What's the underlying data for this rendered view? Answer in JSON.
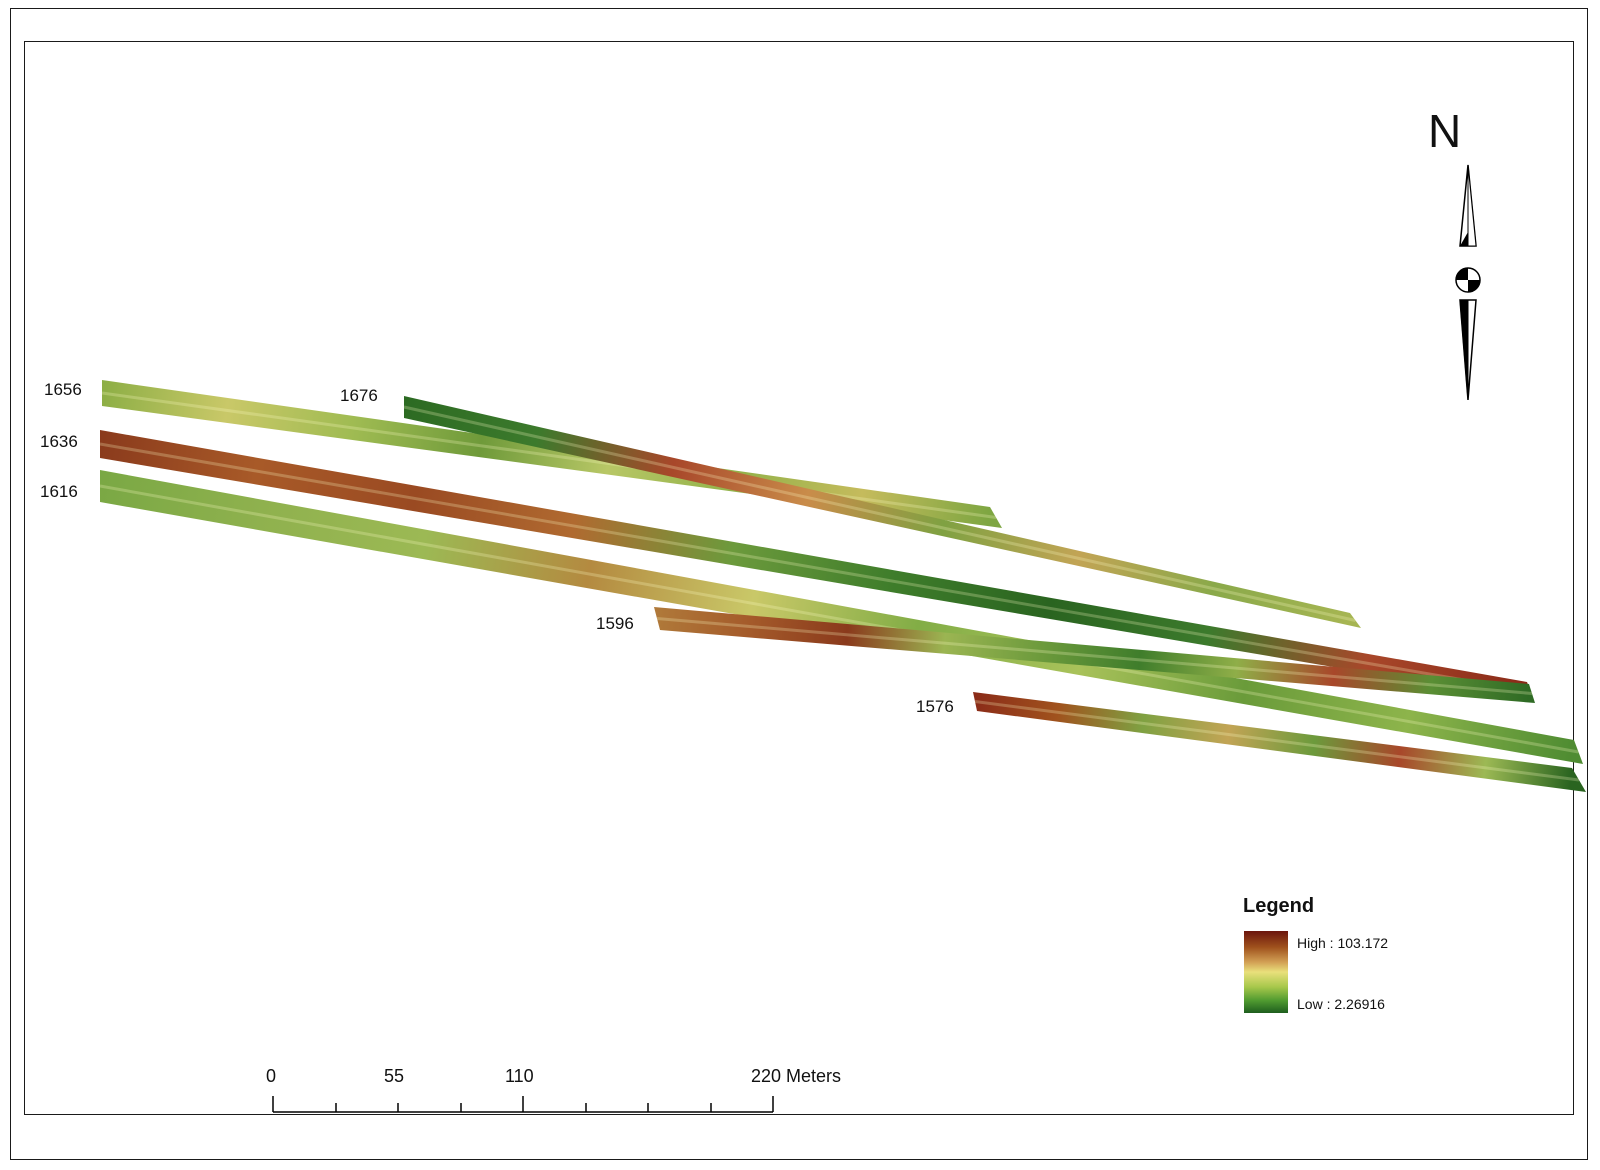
{
  "lines": [
    {
      "label": "1656",
      "colors": [
        "#8cae45",
        "#c9c868",
        "#9fbb52",
        "#6f9a3a",
        "#b8c766",
        "#92b24a",
        "#c5bb5c",
        "#7ea642"
      ]
    },
    {
      "label": "1676",
      "colors": [
        "#2c6a22",
        "#3c7a2c",
        "#a8472a",
        "#c98c4a",
        "#7fa142",
        "#c2a455",
        "#8aa94a",
        "#a6b552"
      ]
    },
    {
      "label": "1636",
      "colors": [
        "#8a3a1c",
        "#a85a28",
        "#9a4a22",
        "#b06a30",
        "#6c9a3c",
        "#3f7d2b",
        "#2a6420",
        "#3c7a2c",
        "#a8472a",
        "#8a2a18"
      ]
    },
    {
      "label": "1616",
      "colors": [
        "#7aa844",
        "#8fb14e",
        "#9cb954",
        "#b48a40",
        "#c9c868",
        "#82ad46",
        "#a9c25a",
        "#6a9b3a",
        "#8db44b",
        "#4f8c32"
      ]
    },
    {
      "label": "1596",
      "colors": [
        "#b07a3a",
        "#a45a2a",
        "#8a3a1c",
        "#9bb552",
        "#6c9a3c",
        "#3f7d2b",
        "#8fae48",
        "#a8472a",
        "#5a8e34",
        "#2f6b25"
      ]
    },
    {
      "label": "1576",
      "colors": [
        "#8a2a18",
        "#a0521d",
        "#7fa142",
        "#c2a455",
        "#6c9a3c",
        "#a8472a",
        "#9cb954",
        "#2a6420"
      ]
    }
  ],
  "north_arrow": {
    "letter": "N"
  },
  "legend": {
    "title": "Legend",
    "high_label": "High : 103.172",
    "low_label": "Low : 2.26916"
  },
  "scale_bar": {
    "ticks": [
      "0",
      "55",
      "110",
      "220 Meters"
    ]
  }
}
